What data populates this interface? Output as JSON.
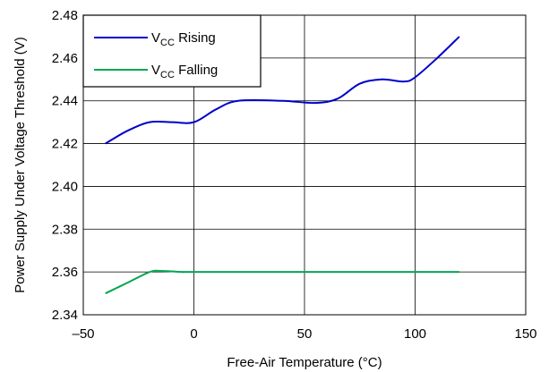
{
  "chart_data": {
    "type": "line",
    "xlabel": "Free-Air Temperature (°C)",
    "ylabel": "Power Supply Under Voltage Threshold (V)",
    "xlim": [
      -50,
      150
    ],
    "ylim": [
      2.34,
      2.48
    ],
    "xticks": [
      "–50",
      "0",
      "50",
      "100",
      "150"
    ],
    "yticks": [
      "2.34",
      "2.36",
      "2.38",
      "2.40",
      "2.42",
      "2.44",
      "2.46",
      "2.48"
    ],
    "grid": true,
    "legend_position": "top-left",
    "series": [
      {
        "name_main": "V",
        "name_sub": "CC",
        "name_rest": " Rising",
        "color": "#0000cc",
        "points": [
          [
            -40,
            2.42
          ],
          [
            -30,
            2.426
          ],
          [
            -20,
            2.43
          ],
          [
            -10,
            2.43
          ],
          [
            0,
            2.43
          ],
          [
            10,
            2.436
          ],
          [
            20,
            2.44
          ],
          [
            40,
            2.44
          ],
          [
            55,
            2.439
          ],
          [
            65,
            2.441
          ],
          [
            75,
            2.448
          ],
          [
            85,
            2.45
          ],
          [
            95,
            2.449
          ],
          [
            100,
            2.451
          ],
          [
            110,
            2.46
          ],
          [
            120,
            2.47
          ]
        ]
      },
      {
        "name_main": "V",
        "name_sub": "CC",
        "name_rest": " Falling",
        "color": "#00a651",
        "points": [
          [
            -40,
            2.35
          ],
          [
            -30,
            2.355
          ],
          [
            -20,
            2.36
          ],
          [
            -15,
            2.3605
          ],
          [
            -5,
            2.36
          ],
          [
            0,
            2.36
          ],
          [
            50,
            2.36
          ],
          [
            120,
            2.36
          ]
        ]
      }
    ]
  }
}
